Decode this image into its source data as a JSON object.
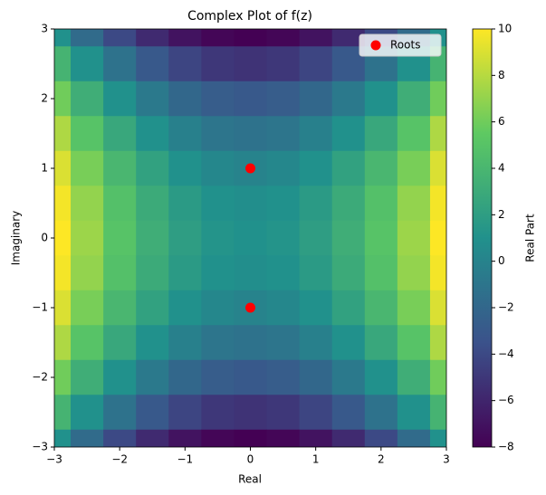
{
  "chart_data": {
    "type": "contourf",
    "title": "Complex Plot of f(z)",
    "x_label": "Real",
    "y_label": "Imaginary",
    "colorbar_label": "Real Part",
    "x": [
      -3,
      -2.5,
      -2,
      -1.5,
      -1,
      -0.5,
      0,
      0.5,
      1,
      1.5,
      2,
      2.5,
      3
    ],
    "y": [
      3,
      2.5,
      2,
      1.5,
      1,
      0.5,
      0,
      -0.5,
      -1,
      -1.5,
      -2,
      -2.5,
      -3
    ],
    "z": [
      [
        1,
        -1.75,
        -4,
        -5.75,
        -7,
        -7.75,
        -8,
        -7.75,
        -7,
        -5.75,
        -4,
        -1.75,
        1
      ],
      [
        3.75,
        1,
        -1.25,
        -3,
        -4.25,
        -5,
        -5.25,
        -5,
        -4.25,
        -3,
        -1.25,
        1,
        3.75
      ],
      [
        6,
        3.25,
        1,
        -0.75,
        -2,
        -2.75,
        -3,
        -2.75,
        -2,
        -0.75,
        1,
        3.25,
        6
      ],
      [
        7.75,
        5,
        2.75,
        1,
        -0.25,
        -1,
        -1.25,
        -1,
        -0.25,
        1,
        2.75,
        5,
        7.75
      ],
      [
        9,
        6.25,
        4,
        2.25,
        1,
        0.25,
        0,
        0.25,
        1,
        2.25,
        4,
        6.25,
        9
      ],
      [
        9.75,
        7,
        4.75,
        3,
        1.75,
        1,
        0.75,
        1,
        1.75,
        3,
        4.75,
        7,
        9.75
      ],
      [
        10,
        7.25,
        5,
        3.25,
        2,
        1.25,
        1,
        1.25,
        2,
        3.25,
        5,
        7.25,
        10
      ],
      [
        9.75,
        7,
        4.75,
        3,
        1.75,
        1,
        0.75,
        1,
        1.75,
        3,
        4.75,
        7,
        9.75
      ],
      [
        9,
        6.25,
        4,
        2.25,
        1,
        0.25,
        0,
        0.25,
        1,
        2.25,
        4,
        6.25,
        9
      ],
      [
        7.75,
        5,
        2.75,
        1,
        -0.25,
        -1,
        -1.25,
        -1,
        -0.25,
        1,
        2.75,
        5,
        7.75
      ],
      [
        6,
        3.25,
        1,
        -0.75,
        -2,
        -2.75,
        -3,
        -2.75,
        -2,
        -0.75,
        1,
        3.25,
        6
      ],
      [
        3.75,
        1,
        -1.25,
        -3,
        -4.25,
        -5,
        -5.25,
        -5,
        -4.25,
        -3,
        -1.25,
        1,
        3.75
      ],
      [
        1,
        -1.75,
        -4,
        -5.75,
        -7,
        -7.75,
        -8,
        -7.75,
        -7,
        -5.75,
        -4,
        -1.75,
        1
      ]
    ],
    "colormap": "viridis",
    "clim": [
      -8,
      10
    ],
    "cticks": [
      {
        "value": -8,
        "label": "−8"
      },
      {
        "value": -6,
        "label": "−6"
      },
      {
        "value": -4,
        "label": "−4"
      },
      {
        "value": -2,
        "label": "−2"
      },
      0,
      2,
      4,
      6,
      8,
      10
    ],
    "series": [
      {
        "name": "Roots",
        "color": "#ff0000",
        "x": [
          0,
          0
        ],
        "y": [
          1,
          -1
        ]
      }
    ],
    "legend": "upper right",
    "xlim": [
      -3,
      3
    ],
    "ylim": [
      -3,
      3
    ],
    "xticks": [
      {
        "value": -3,
        "label": "−3"
      },
      {
        "value": -2,
        "label": "−2"
      },
      {
        "value": -1,
        "label": "−1"
      },
      0,
      1,
      2,
      3
    ],
    "yticks": [
      {
        "value": -3,
        "label": "−3"
      },
      {
        "value": -2,
        "label": "−2"
      },
      {
        "value": -1,
        "label": "−1"
      },
      0,
      1,
      2,
      3
    ]
  }
}
